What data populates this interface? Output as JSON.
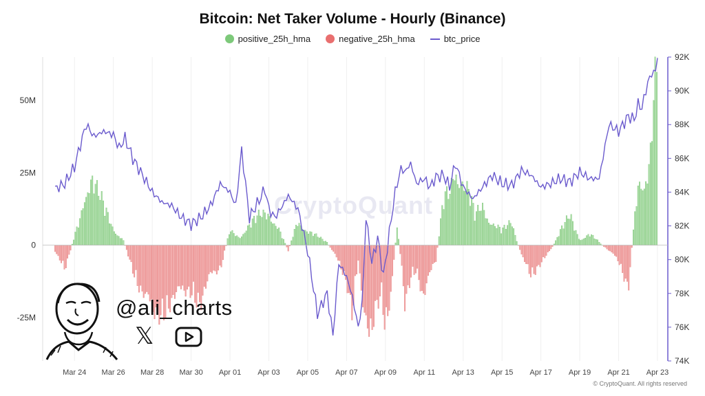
{
  "chart_data": {
    "type": "bar",
    "title": "Bitcoin: Net Taker Volume - Hourly (Binance)",
    "legend": [
      {
        "name": "positive_25h_hma",
        "color": "#7dc97a",
        "kind": "dot"
      },
      {
        "name": "negative_25h_hma",
        "color": "#e96f6f",
        "kind": "dot"
      },
      {
        "name": "btc_price",
        "color": "#6a5acd",
        "kind": "line"
      }
    ],
    "x_ticks": [
      "Mar 24",
      "Mar 26",
      "Mar 28",
      "Mar 30",
      "Apr 01",
      "Apr 03",
      "Apr 05",
      "Apr 07",
      "Apr 09",
      "Apr 11",
      "Apr 13",
      "Apr 15",
      "Apr 17",
      "Apr 19",
      "Apr 21",
      "Apr 23"
    ],
    "x_range_days": [
      0,
      31
    ],
    "y_left": {
      "ticks": [
        {
          "v": 50,
          "label": "50M"
        },
        {
          "v": 25,
          "label": "25M"
        },
        {
          "v": 0,
          "label": "0"
        },
        {
          "v": -25,
          "label": "-25M"
        }
      ],
      "range": [
        -40,
        65
      ],
      "unit": "M"
    },
    "y_right": {
      "ticks": [
        {
          "v": 92,
          "label": "92K"
        },
        {
          "v": 90,
          "label": "90K"
        },
        {
          "v": 88,
          "label": "88K"
        },
        {
          "v": 86,
          "label": "86K"
        },
        {
          "v": 84,
          "label": "84K"
        },
        {
          "v": 82,
          "label": "82K"
        },
        {
          "v": 80,
          "label": "80K"
        },
        {
          "v": 78,
          "label": "78K"
        },
        {
          "v": 76,
          "label": "76K"
        },
        {
          "v": 74,
          "label": "74K"
        }
      ],
      "range": [
        74,
        92
      ],
      "unit": "K"
    },
    "net_volume_series": {
      "days": [
        0,
        0.5,
        1,
        1.3,
        1.6,
        1.9,
        2.2,
        2.6,
        3,
        3.5,
        4,
        4.5,
        5,
        5.5,
        6,
        6.5,
        7,
        7.5,
        8,
        8.5,
        9,
        9.5,
        10,
        10.5,
        11,
        11.5,
        12,
        12.5,
        13,
        13.5,
        14,
        14.5,
        15,
        15.3,
        15.6,
        15.9,
        16.2,
        16.5,
        16.8,
        17,
        17.3,
        17.6,
        18,
        18.3,
        18.6,
        19,
        19.3,
        19.6,
        20,
        20.3,
        20.6,
        21,
        21.3,
        21.6,
        22,
        22.5,
        23,
        23.5,
        24,
        24.5,
        25,
        25.5,
        26,
        26.5,
        27,
        27.5,
        28,
        28.5,
        29,
        29.5,
        30,
        30.3,
        30.6,
        30.8,
        31
      ],
      "values": [
        -3,
        -8,
        3,
        10,
        22,
        24,
        18,
        12,
        6,
        2,
        -8,
        -18,
        -25,
        -22,
        -20,
        -18,
        -15,
        -20,
        -12,
        -8,
        5,
        3,
        7,
        10,
        12,
        6,
        -2,
        9,
        5,
        3,
        1,
        -5,
        -12,
        -22,
        -5,
        -30,
        -35,
        -20,
        -15,
        -28,
        -18,
        8,
        -20,
        -10,
        -8,
        -22,
        -10,
        -5,
        16,
        18,
        30,
        22,
        18,
        10,
        14,
        8,
        5,
        8,
        -4,
        -10,
        -6,
        -2,
        5,
        10,
        2,
        4,
        1,
        -2,
        -6,
        -14,
        22,
        25,
        30,
        50,
        60
      ]
    },
    "btc_price_series": {
      "days": [
        0,
        0.5,
        1,
        1.3,
        1.6,
        2,
        2.5,
        3,
        3.3,
        3.6,
        4,
        4.5,
        5,
        5.5,
        6,
        6.5,
        7,
        7.5,
        8,
        8.5,
        9,
        9.3,
        9.6,
        10,
        10.5,
        10.8,
        11,
        11.3,
        11.6,
        12,
        12.5,
        13,
        13.5,
        14,
        14.3,
        14.6,
        15,
        15.3,
        15.6,
        15.8,
        16,
        16.3,
        16.6,
        16.9,
        17.2,
        17.5,
        17.8,
        18,
        18.3,
        18.6,
        19,
        19.3,
        19.6,
        20,
        20.3,
        20.6,
        21,
        21.5,
        22,
        22.5,
        23,
        23.5,
        24,
        24.5,
        25,
        25.5,
        26,
        26.5,
        27,
        27.5,
        28,
        28.5,
        29,
        29.5,
        29.8,
        30,
        30.2,
        30.5,
        30.7,
        30.9,
        31
      ],
      "values": [
        84.2,
        84.5,
        85.5,
        86.8,
        88.0,
        87.3,
        87.6,
        87.4,
        86.6,
        87.2,
        86.0,
        85.0,
        84.0,
        83.4,
        83.2,
        82.5,
        82.1,
        82.5,
        83.2,
        84.5,
        84.0,
        83.2,
        86.5,
        82.5,
        83.5,
        84.2,
        83.0,
        82.5,
        83.0,
        83.8,
        83.0,
        80.5,
        76.8,
        78.0,
        75.5,
        79.8,
        79.0,
        77.8,
        76.0,
        77.4,
        82.5,
        79.8,
        81.3,
        79.0,
        81.6,
        84.0,
        85.4,
        85.2,
        85.7,
        84.5,
        84.8,
        84.3,
        84.9,
        85.0,
        84.3,
        85.7,
        84.3,
        83.6,
        84.3,
        85.0,
        84.5,
        84.4,
        85.3,
        85.0,
        84.3,
        84.5,
        84.8,
        84.6,
        85.2,
        84.8,
        84.8,
        88.0,
        87.6,
        88.5,
        88.3,
        89.2,
        89.0,
        90.5,
        91.0,
        91.2,
        92.0
      ]
    }
  },
  "overlay": {
    "handle": "@ali_charts",
    "x_logo": "𝕏",
    "copyright": "© CryptoQuant. All rights reserved",
    "watermark": "CryptoQuant"
  }
}
